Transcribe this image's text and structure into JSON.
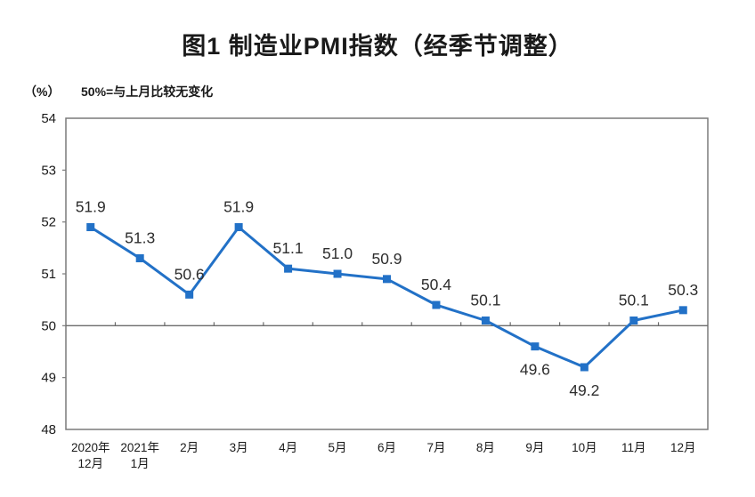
{
  "chart_data": {
    "type": "line",
    "title": "图1 制造业PMI指数（经季节调整）",
    "unit_label": "（%）",
    "annotation": "50%=与上月比较无变化",
    "categories": [
      "2020年12月",
      "2021年1月",
      "2月",
      "3月",
      "4月",
      "5月",
      "6月",
      "7月",
      "8月",
      "9月",
      "10月",
      "11月",
      "12月"
    ],
    "x_tick_labels": [
      [
        "2020年",
        "12月"
      ],
      [
        "2021年",
        "1月"
      ],
      [
        "2月"
      ],
      [
        "3月"
      ],
      [
        "4月"
      ],
      [
        "5月"
      ],
      [
        "6月"
      ],
      [
        "7月"
      ],
      [
        "8月"
      ],
      [
        "9月"
      ],
      [
        "10月"
      ],
      [
        "11月"
      ],
      [
        "12月"
      ]
    ],
    "series": [
      {
        "name": "制造业PMI",
        "values": [
          51.9,
          51.3,
          50.6,
          51.9,
          51.1,
          51.0,
          50.9,
          50.4,
          50.1,
          49.6,
          49.2,
          50.1,
          50.3
        ],
        "value_labels": [
          "51.9",
          "51.3",
          "50.6",
          "51.9",
          "51.1",
          "51.0",
          "50.9",
          "50.4",
          "50.1",
          "49.6",
          "49.2",
          "50.1",
          "50.3"
        ]
      }
    ],
    "ylim": [
      48,
      54
    ],
    "y_ticks": [
      48,
      49,
      50,
      51,
      52,
      53,
      54
    ],
    "reference_line_y": 50,
    "grid": false,
    "legend": "none",
    "marker": "square",
    "colors": {
      "line": "#2271c7",
      "frame": "#7a7a7a",
      "axis": "#6b6b6b",
      "text": "#1a1a1a",
      "data_label": "#2e2e2e"
    }
  }
}
